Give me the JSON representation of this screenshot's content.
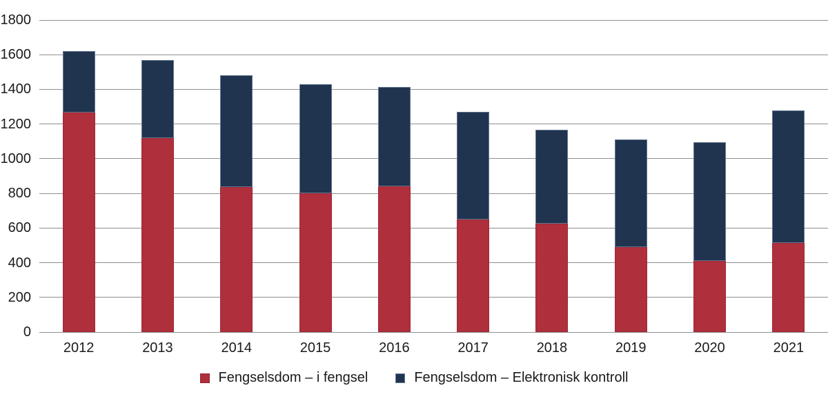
{
  "chart_data": {
    "type": "bar",
    "stacked": true,
    "title": "",
    "xlabel": "",
    "ylabel": "",
    "categories": [
      "2012",
      "2013",
      "2014",
      "2015",
      "2016",
      "2017",
      "2018",
      "2019",
      "2020",
      "2021"
    ],
    "series": [
      {
        "name": "Fengselsdom – i fengsel",
        "color": "#af2f3c",
        "values": [
          1265,
          1120,
          835,
          800,
          840,
          650,
          625,
          490,
          410,
          515
        ]
      },
      {
        "name": "Fengselsdom – Elektronisk kontroll",
        "color": "#203450",
        "values": [
          355,
          450,
          645,
          630,
          575,
          620,
          540,
          620,
          685,
          765
        ]
      }
    ],
    "ylim": [
      0,
      1800
    ],
    "ytick_step": 200,
    "y_tick_labels": [
      "0",
      "200",
      "400",
      "600",
      "800",
      "1000",
      "1200",
      "1400",
      "1600",
      "1800"
    ],
    "grid": true,
    "gridline_color": "#8f8f8f",
    "text_color": "#1a1a1a",
    "background_color": "#ffffff",
    "legend_position": "bottom"
  },
  "legend": {
    "items": [
      {
        "label": "Fengselsdom – i fengsel",
        "color": "#af2f3c"
      },
      {
        "label": "Fengselsdom – Elektronisk kontroll",
        "color": "#203450"
      }
    ]
  }
}
